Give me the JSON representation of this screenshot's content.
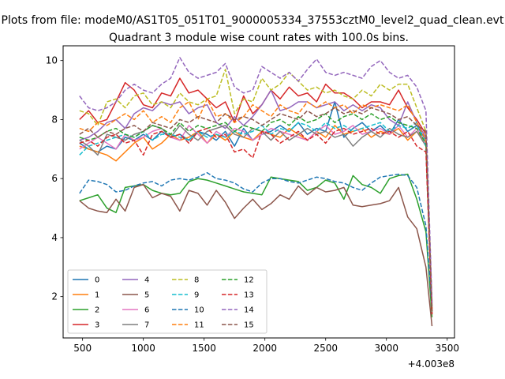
{
  "figure": {
    "suptitle": "Plots from file: modeM0/AS1T05_051T01_9000005334_37553cztM0_level2_quad_clean.evt",
    "title": "Quadrant 3 module wise count rates with 100.0s bins."
  },
  "chart_data": {
    "type": "line",
    "title": "Quadrant 3 module wise count rates with 100.0s bins.",
    "xlabel": "",
    "ylabel": "",
    "x_offset_label": "+4.003e8",
    "xlim": [
      340,
      3560
    ],
    "ylim": [
      0.6,
      10.5
    ],
    "xticks": [
      500,
      1000,
      1500,
      2000,
      2500,
      3000,
      3500
    ],
    "xtick_labels": [
      "500",
      "1000",
      "1500",
      "2000",
      "2500",
      "3000",
      "3500"
    ],
    "yticks": [
      2,
      4,
      6,
      8,
      10
    ],
    "ytick_labels": [
      "2",
      "4",
      "6",
      "8",
      "10"
    ],
    "grid": false,
    "legend_placement": "lower-left",
    "legend_columns": 4,
    "x": [
      475,
      550,
      625,
      700,
      775,
      850,
      925,
      1000,
      1075,
      1150,
      1225,
      1300,
      1375,
      1450,
      1525,
      1600,
      1675,
      1750,
      1825,
      1900,
      1975,
      2050,
      2125,
      2200,
      2275,
      2350,
      2425,
      2500,
      2575,
      2650,
      2725,
      2800,
      2875,
      2950,
      3025,
      3100,
      3175,
      3250,
      3325,
      3375
    ],
    "series": [
      {
        "name": "0",
        "color": "#1f77b4",
        "style": "solid",
        "values": [
          7.2,
          7.0,
          6.9,
          7.1,
          7.0,
          7.4,
          7.3,
          7.5,
          7.3,
          7.6,
          7.4,
          7.5,
          7.3,
          7.6,
          7.5,
          7.3,
          7.6,
          7.1,
          7.7,
          7.3,
          7.5,
          7.6,
          7.8,
          7.6,
          7.9,
          7.5,
          7.7,
          7.6,
          8.6,
          7.4,
          7.7,
          7.9,
          7.6,
          7.8,
          7.5,
          8.0,
          7.6,
          7.8,
          7.3,
          1.5
        ]
      },
      {
        "name": "1",
        "color": "#ff7f0e",
        "style": "solid",
        "values": [
          7.1,
          7.0,
          6.9,
          6.8,
          6.6,
          6.9,
          7.2,
          7.4,
          7.0,
          7.2,
          7.5,
          7.3,
          7.4,
          7.6,
          7.2,
          7.5,
          7.3,
          7.6,
          7.4,
          7.3,
          7.6,
          7.5,
          7.4,
          7.7,
          7.5,
          7.3,
          7.6,
          7.4,
          7.8,
          7.5,
          7.6,
          7.7,
          7.4,
          7.6,
          7.5,
          7.7,
          7.3,
          7.6,
          7.2,
          1.4
        ]
      },
      {
        "name": "2",
        "color": "#2ca02c",
        "style": "solid",
        "values": [
          5.25,
          5.35,
          5.45,
          5.0,
          4.85,
          5.7,
          5.75,
          5.8,
          5.6,
          5.5,
          5.45,
          5.5,
          5.9,
          6.0,
          5.95,
          5.85,
          5.75,
          5.65,
          5.55,
          5.5,
          5.45,
          6.05,
          6.0,
          5.95,
          5.9,
          5.6,
          5.7,
          5.95,
          5.85,
          5.3,
          6.1,
          5.8,
          5.7,
          5.5,
          6.0,
          6.1,
          6.15,
          5.3,
          4.2,
          1.3
        ]
      },
      {
        "name": "3",
        "color": "#d62728",
        "style": "solid",
        "values": [
          8.0,
          8.3,
          7.9,
          8.0,
          8.6,
          9.25,
          9.0,
          8.5,
          8.4,
          8.9,
          8.8,
          9.4,
          8.9,
          9.0,
          8.7,
          8.4,
          8.6,
          7.9,
          8.8,
          8.2,
          8.5,
          9.0,
          8.7,
          9.1,
          8.8,
          8.9,
          8.6,
          9.2,
          8.9,
          8.9,
          8.7,
          8.4,
          8.6,
          8.6,
          8.5,
          9.0,
          8.4,
          8.0,
          7.5,
          1.6
        ]
      },
      {
        "name": "4",
        "color": "#9467bd",
        "style": "solid",
        "values": [
          7.3,
          7.4,
          7.6,
          7.9,
          8.0,
          7.7,
          8.2,
          8.4,
          8.3,
          8.6,
          8.5,
          8.6,
          8.2,
          8.4,
          8.5,
          7.9,
          7.7,
          8.1,
          7.8,
          8.1,
          8.5,
          9.0,
          8.3,
          8.4,
          8.6,
          8.6,
          8.4,
          8.5,
          8.6,
          8.3,
          8.5,
          8.3,
          8.5,
          8.4,
          8.0,
          7.8,
          8.6,
          7.9,
          7.4,
          1.7
        ]
      },
      {
        "name": "5",
        "color": "#8c564b",
        "style": "solid",
        "values": [
          5.25,
          5.0,
          4.9,
          4.85,
          5.3,
          4.9,
          5.7,
          5.8,
          5.35,
          5.5,
          5.4,
          4.9,
          5.6,
          5.5,
          5.1,
          5.6,
          5.2,
          4.65,
          5.0,
          5.3,
          4.95,
          5.15,
          5.45,
          5.3,
          5.75,
          5.45,
          5.7,
          5.55,
          5.6,
          5.7,
          5.1,
          5.05,
          5.1,
          5.15,
          5.25,
          5.7,
          4.7,
          4.3,
          3.0,
          1.0
        ]
      },
      {
        "name": "6",
        "color": "#e377c2",
        "style": "solid",
        "values": [
          7.0,
          7.2,
          7.4,
          7.2,
          7.0,
          7.5,
          7.3,
          7.4,
          7.6,
          7.7,
          7.4,
          7.3,
          7.8,
          7.5,
          7.2,
          7.6,
          7.4,
          7.7,
          7.6,
          7.3,
          7.5,
          7.7,
          7.6,
          7.5,
          7.4,
          7.3,
          7.6,
          7.8,
          7.5,
          7.6,
          7.8,
          7.5,
          7.6,
          7.7,
          7.5,
          7.8,
          7.4,
          7.7,
          7.2,
          1.5
        ]
      },
      {
        "name": "7",
        "color": "#7f7f7f",
        "style": "solid",
        "values": [
          7.3,
          7.1,
          6.8,
          7.5,
          7.4,
          7.3,
          7.5,
          7.6,
          7.8,
          7.7,
          7.4,
          7.8,
          7.5,
          7.3,
          7.6,
          7.7,
          7.8,
          7.5,
          7.4,
          7.7,
          7.6,
          7.3,
          7.6,
          7.3,
          7.5,
          7.7,
          7.5,
          7.6,
          7.4,
          7.5,
          7.1,
          7.4,
          7.6,
          7.4,
          7.7,
          7.5,
          7.4,
          7.6,
          7.1,
          1.4
        ]
      },
      {
        "name": "8",
        "color": "#bcbd22",
        "style": "dashed",
        "values": [
          8.3,
          8.2,
          7.8,
          8.6,
          8.7,
          8.4,
          8.8,
          8.9,
          8.5,
          8.6,
          8.4,
          8.9,
          8.6,
          8.5,
          8.7,
          8.8,
          9.7,
          8.2,
          8.7,
          8.6,
          9.4,
          9.0,
          9.2,
          9.6,
          9.3,
          9.0,
          9.1,
          8.9,
          9.0,
          8.8,
          8.7,
          9.0,
          8.8,
          9.2,
          9.0,
          9.2,
          9.2,
          8.4,
          7.6,
          1.6
        ]
      },
      {
        "name": "9",
        "color": "#17becf",
        "style": "dashed",
        "values": [
          6.8,
          7.1,
          7.2,
          7.3,
          7.4,
          7.5,
          7.4,
          7.6,
          7.3,
          7.5,
          7.5,
          7.4,
          7.3,
          7.6,
          7.4,
          7.5,
          7.4,
          7.6,
          7.5,
          7.6,
          7.8,
          7.5,
          7.7,
          7.6,
          7.9,
          7.8,
          7.6,
          7.9,
          7.7,
          7.8,
          7.6,
          7.7,
          7.8,
          7.9,
          7.6,
          7.8,
          7.7,
          7.9,
          7.1,
          1.5
        ]
      },
      {
        "name": "10",
        "color": "#1f77b4",
        "style": "dashed",
        "values": [
          5.5,
          5.95,
          5.9,
          5.8,
          5.55,
          5.6,
          5.75,
          5.85,
          5.9,
          5.75,
          5.95,
          6.0,
          5.95,
          6.05,
          6.2,
          6.0,
          5.95,
          5.85,
          5.65,
          5.55,
          5.85,
          6.0,
          6.0,
          5.9,
          5.85,
          5.95,
          6.05,
          6.0,
          5.9,
          5.85,
          5.7,
          5.6,
          5.85,
          6.05,
          6.1,
          6.15,
          6.1,
          5.7,
          4.4,
          1.6
        ]
      },
      {
        "name": "11",
        "color": "#ff7f0e",
        "style": "dashed",
        "values": [
          7.7,
          7.6,
          7.9,
          7.8,
          8.0,
          8.2,
          8.0,
          8.3,
          7.9,
          8.1,
          7.9,
          8.4,
          8.6,
          8.0,
          8.7,
          8.1,
          8.2,
          7.9,
          8.1,
          8.5,
          8.3,
          8.1,
          8.5,
          8.3,
          8.2,
          8.6,
          8.4,
          8.6,
          8.4,
          8.5,
          8.2,
          8.5,
          8.4,
          8.5,
          8.4,
          8.3,
          8.5,
          7.9,
          7.3,
          1.5
        ]
      },
      {
        "name": "12",
        "color": "#2ca02c",
        "style": "dashed",
        "values": [
          7.4,
          7.3,
          7.4,
          7.6,
          7.7,
          7.5,
          7.4,
          7.6,
          7.8,
          7.7,
          7.5,
          7.9,
          7.6,
          7.8,
          7.7,
          7.8,
          7.9,
          7.6,
          7.8,
          7.7,
          7.6,
          7.9,
          8.0,
          7.8,
          8.1,
          7.9,
          8.0,
          8.2,
          7.9,
          8.1,
          8.2,
          8.0,
          8.2,
          8.0,
          8.1,
          7.9,
          7.8,
          7.7,
          7.2,
          1.7
        ]
      },
      {
        "name": "13",
        "color": "#d62728",
        "style": "dashed",
        "values": [
          7.2,
          7.3,
          7.1,
          7.4,
          7.5,
          7.2,
          7.3,
          6.8,
          7.5,
          7.6,
          7.4,
          7.5,
          7.2,
          7.6,
          7.7,
          7.4,
          7.5,
          6.9,
          7.0,
          6.7,
          7.6,
          7.5,
          7.2,
          7.4,
          7.6,
          7.3,
          7.5,
          7.2,
          7.6,
          7.7,
          7.5,
          7.6,
          7.7,
          7.5,
          7.6,
          7.4,
          7.6,
          7.1,
          6.9,
          1.4
        ]
      },
      {
        "name": "14",
        "color": "#9467bd",
        "style": "dashed",
        "values": [
          8.8,
          8.4,
          8.3,
          8.4,
          8.6,
          9.0,
          9.2,
          9.0,
          8.9,
          9.2,
          9.4,
          10.1,
          9.6,
          9.4,
          9.5,
          9.6,
          9.9,
          9.1,
          8.9,
          9.0,
          9.8,
          9.6,
          9.4,
          9.6,
          9.3,
          9.7,
          10.05,
          9.6,
          9.5,
          9.6,
          9.5,
          9.4,
          9.8,
          10.0,
          9.6,
          9.4,
          9.5,
          9.1,
          8.3,
          1.8
        ]
      },
      {
        "name": "15",
        "color": "#8c564b",
        "style": "dashed",
        "values": [
          7.5,
          7.7,
          7.4,
          7.6,
          7.5,
          7.7,
          7.8,
          7.6,
          7.9,
          7.8,
          7.7,
          8.0,
          7.9,
          8.1,
          8.0,
          7.9,
          8.2,
          8.0,
          8.1,
          8.0,
          7.8,
          8.0,
          8.2,
          8.1,
          8.0,
          8.3,
          8.1,
          8.2,
          8.4,
          8.2,
          8.3,
          8.2,
          8.4,
          8.3,
          8.2,
          8.0,
          8.1,
          7.8,
          7.6,
          1.5
        ]
      }
    ]
  }
}
